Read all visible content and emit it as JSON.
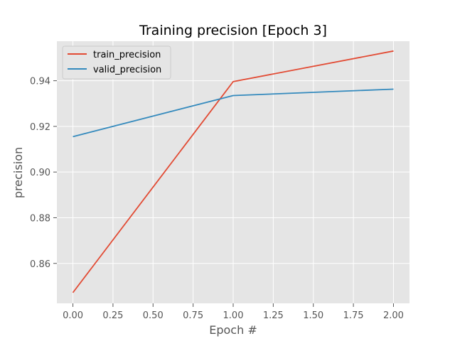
{
  "chart_data": {
    "type": "line",
    "title": "Training precision [Epoch 3]",
    "xlabel": "Epoch #",
    "ylabel": "precision",
    "x": [
      0.0,
      1.0,
      2.0
    ],
    "xlim": [
      -0.1,
      2.1
    ],
    "ylim": [
      0.8425,
      0.9573
    ],
    "xticks": [
      0.0,
      0.25,
      0.5,
      0.75,
      1.0,
      1.25,
      1.5,
      1.75,
      2.0
    ],
    "xtick_labels": [
      "0.00",
      "0.25",
      "0.50",
      "0.75",
      "1.00",
      "1.25",
      "1.50",
      "1.75",
      "2.00"
    ],
    "yticks": [
      0.86,
      0.88,
      0.9,
      0.92,
      0.94
    ],
    "ytick_labels": [
      "0.86",
      "0.88",
      "0.90",
      "0.92",
      "0.94"
    ],
    "grid": true,
    "legend_position": "top-left",
    "series": [
      {
        "name": "train_precision",
        "color": "#e24a33",
        "values": [
          0.8472,
          0.9396,
          0.953
        ]
      },
      {
        "name": "valid_precision",
        "color": "#348abd",
        "values": [
          0.9155,
          0.9335,
          0.9363
        ]
      }
    ]
  }
}
